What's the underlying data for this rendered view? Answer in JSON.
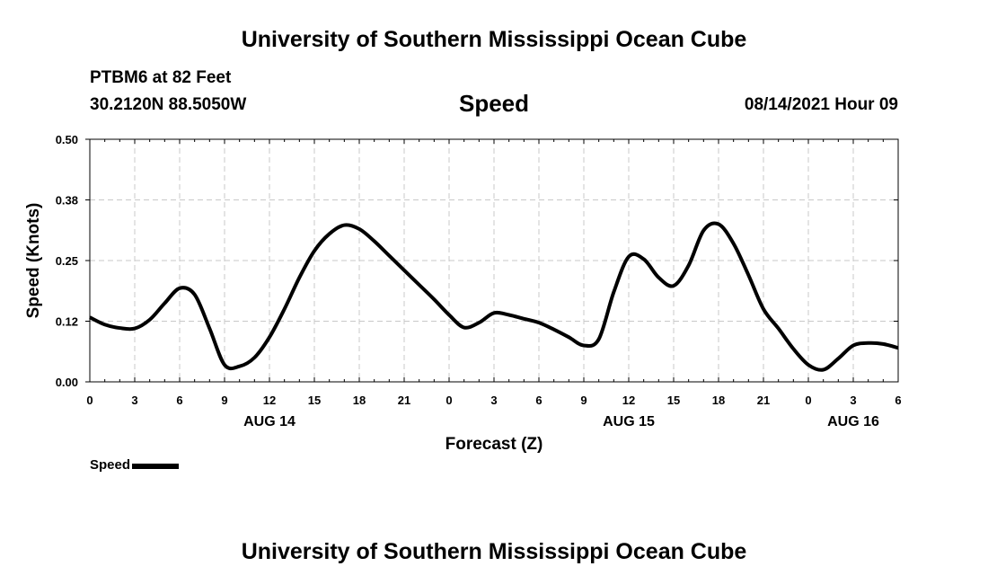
{
  "header": {
    "title": "University of Southern Mississippi Ocean Cube",
    "station": "PTBM6 at 82 Feet",
    "coordinates": "30.2120N  88.5050W",
    "datetime": "08/14/2021 Hour 09"
  },
  "footer": {
    "title": "University of Southern Mississippi Ocean Cube"
  },
  "legend": {
    "label": "Speed"
  },
  "chart_data": {
    "type": "line",
    "title": "Speed",
    "xlabel": "Forecast (Z)",
    "ylabel": "Speed (Knots)",
    "ylim": [
      0,
      0.5
    ],
    "xlim": [
      0,
      54
    ],
    "grid": true,
    "legend_position": "bottom-left",
    "y_ticks": [
      {
        "value": 0.0,
        "label": "0.00"
      },
      {
        "value": 0.125,
        "label": "0.12"
      },
      {
        "value": 0.25,
        "label": "0.25"
      },
      {
        "value": 0.375,
        "label": "0.38"
      },
      {
        "value": 0.5,
        "label": "0.50"
      }
    ],
    "x_ticks": [
      {
        "value": 0,
        "label": "0"
      },
      {
        "value": 3,
        "label": "3"
      },
      {
        "value": 6,
        "label": "6"
      },
      {
        "value": 9,
        "label": "9"
      },
      {
        "value": 12,
        "label": "12"
      },
      {
        "value": 15,
        "label": "15"
      },
      {
        "value": 18,
        "label": "18"
      },
      {
        "value": 21,
        "label": "21"
      },
      {
        "value": 24,
        "label": "0"
      },
      {
        "value": 27,
        "label": "3"
      },
      {
        "value": 30,
        "label": "6"
      },
      {
        "value": 33,
        "label": "9"
      },
      {
        "value": 36,
        "label": "12"
      },
      {
        "value": 39,
        "label": "15"
      },
      {
        "value": 42,
        "label": "18"
      },
      {
        "value": 45,
        "label": "21"
      },
      {
        "value": 48,
        "label": "0"
      },
      {
        "value": 51,
        "label": "3"
      },
      {
        "value": 54,
        "label": "6"
      }
    ],
    "date_labels": [
      {
        "value": 12,
        "label": "AUG 14"
      },
      {
        "value": 36,
        "label": "AUG 15"
      },
      {
        "value": 51,
        "label": "AUG 16"
      }
    ],
    "series": [
      {
        "name": "Speed",
        "color": "#000000",
        "x": [
          0,
          1,
          2,
          3,
          4,
          5,
          6,
          7,
          8,
          9,
          10,
          11,
          12,
          13,
          14,
          15,
          16,
          17,
          18,
          19,
          20,
          21,
          22,
          23,
          24,
          25,
          26,
          27,
          28,
          29,
          30,
          31,
          32,
          33,
          34,
          35,
          36,
          37,
          38,
          39,
          40,
          41,
          42,
          43,
          44,
          45,
          46,
          47,
          48,
          49,
          50,
          51,
          52,
          53,
          54
        ],
        "values": [
          0.133,
          0.118,
          0.111,
          0.11,
          0.128,
          0.162,
          0.193,
          0.18,
          0.11,
          0.035,
          0.032,
          0.05,
          0.092,
          0.15,
          0.215,
          0.27,
          0.305,
          0.323,
          0.315,
          0.29,
          0.26,
          0.23,
          0.2,
          0.17,
          0.138,
          0.112,
          0.122,
          0.142,
          0.138,
          0.13,
          0.122,
          0.108,
          0.092,
          0.075,
          0.088,
          0.185,
          0.258,
          0.253,
          0.215,
          0.198,
          0.24,
          0.312,
          0.325,
          0.285,
          0.22,
          0.15,
          0.11,
          0.068,
          0.035,
          0.025,
          0.048,
          0.075,
          0.08,
          0.078,
          0.07
        ]
      }
    ]
  }
}
